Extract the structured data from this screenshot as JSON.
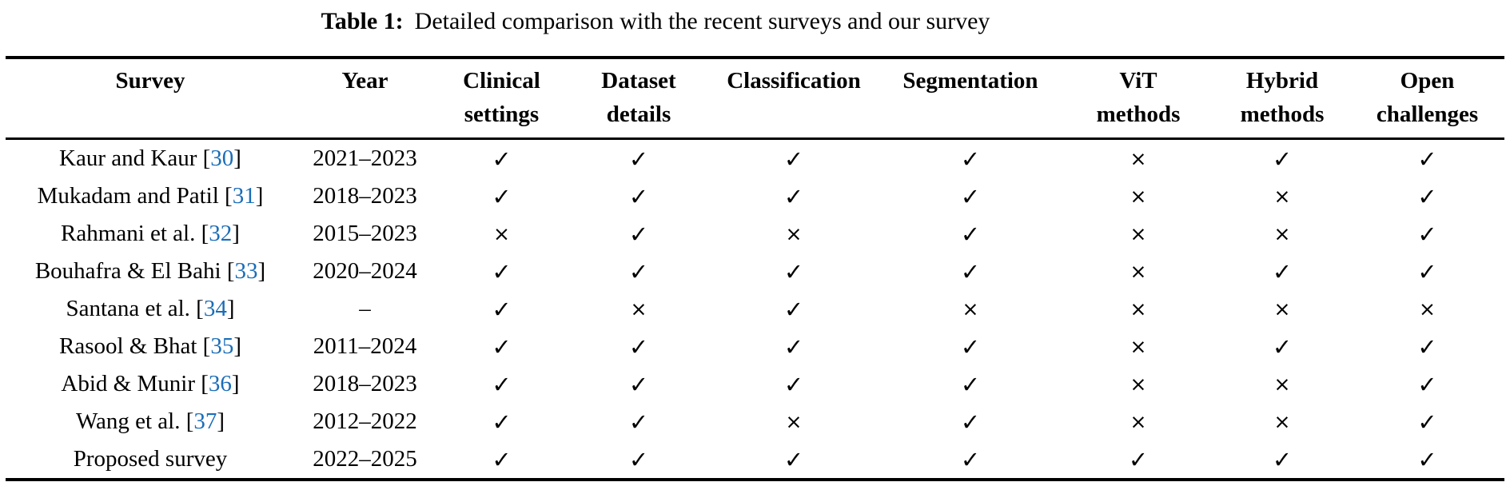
{
  "caption": {
    "label": "Table 1:",
    "text": "Detailed comparison with the recent surveys and our survey"
  },
  "table": {
    "headers": [
      {
        "line1": "Survey",
        "line2": ""
      },
      {
        "line1": "Year",
        "line2": ""
      },
      {
        "line1": "Clinical",
        "line2": "settings"
      },
      {
        "line1": "Dataset",
        "line2": "details"
      },
      {
        "line1": "Classification",
        "line2": ""
      },
      {
        "line1": "Segmentation",
        "line2": ""
      },
      {
        "line1": "ViT",
        "line2": "methods"
      },
      {
        "line1": "Hybrid",
        "line2": "methods"
      },
      {
        "line1": "Open",
        "line2": "challenges"
      }
    ],
    "rows": [
      {
        "survey": "Kaur and Kaur",
        "ref": "30",
        "year": "2021–2023",
        "marks": [
          "check",
          "check",
          "check",
          "check",
          "cross",
          "check",
          "check"
        ]
      },
      {
        "survey": "Mukadam and Patil",
        "ref": "31",
        "year": "2018–2023",
        "marks": [
          "check",
          "check",
          "check",
          "check",
          "cross",
          "cross",
          "check"
        ]
      },
      {
        "survey": "Rahmani et al.",
        "ref": "32",
        "year": "2015–2023",
        "marks": [
          "cross",
          "check",
          "cross",
          "check",
          "cross",
          "cross",
          "check"
        ]
      },
      {
        "survey": "Bouhafra & El Bahi",
        "ref": "33",
        "year": "2020–2024",
        "marks": [
          "check",
          "check",
          "check",
          "check",
          "cross",
          "check",
          "check"
        ]
      },
      {
        "survey": "Santana et al.",
        "ref": "34",
        "year": "–",
        "marks": [
          "check",
          "cross",
          "check",
          "cross",
          "cross",
          "cross",
          "cross"
        ]
      },
      {
        "survey": "Rasool & Bhat",
        "ref": "35",
        "year": "2011–2024",
        "marks": [
          "check",
          "check",
          "check",
          "check",
          "cross",
          "check",
          "check"
        ]
      },
      {
        "survey": "Abid & Munir",
        "ref": "36",
        "year": "2018–2023",
        "marks": [
          "check",
          "check",
          "check",
          "check",
          "cross",
          "cross",
          "check"
        ]
      },
      {
        "survey": "Wang et al.",
        "ref": "37",
        "year": "2012–2022",
        "marks": [
          "check",
          "check",
          "cross",
          "check",
          "cross",
          "cross",
          "check"
        ]
      },
      {
        "survey": "Proposed survey",
        "ref": null,
        "year": "2022–2025",
        "marks": [
          "check",
          "check",
          "check",
          "check",
          "check",
          "check",
          "check"
        ]
      }
    ]
  },
  "symbols": {
    "check": "✓",
    "cross": "×",
    "bracket_open": "[",
    "bracket_close": "]"
  },
  "colors": {
    "citation_link": "#1a6db8",
    "text": "#000000",
    "rule": "#000000"
  }
}
